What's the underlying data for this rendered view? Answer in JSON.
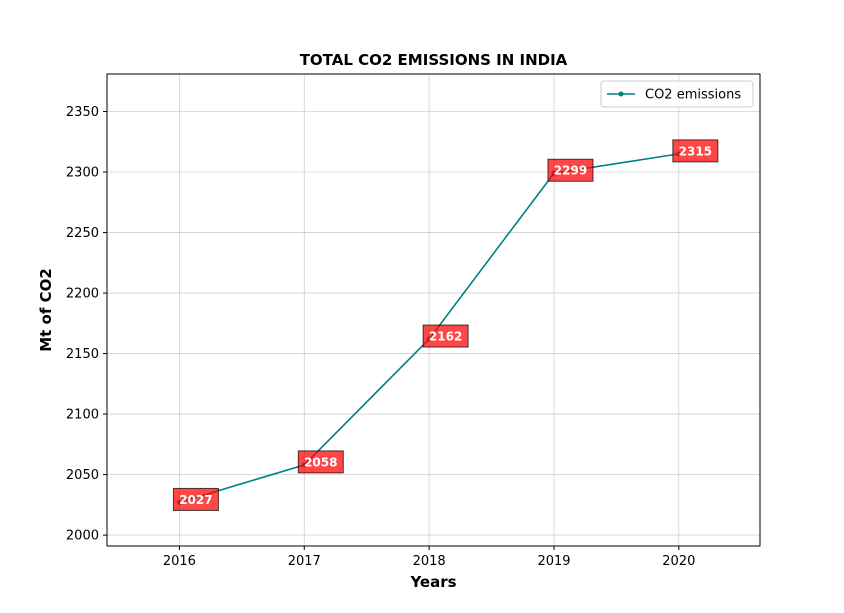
{
  "chart_data": {
    "type": "line",
    "title": "TOTAL CO2 EMISSIONS IN INDIA",
    "xlabel": "Years",
    "ylabel": "Mt of CO2",
    "x": [
      2016,
      2017,
      2018,
      2019,
      2020
    ],
    "x_tick_labels": [
      "2016",
      "2017",
      "2018",
      "2019",
      "2020"
    ],
    "xlim": [
      2015.42,
      2020.65
    ],
    "ylim": [
      1991,
      2381
    ],
    "y_ticks": [
      2000,
      2050,
      2100,
      2150,
      2200,
      2250,
      2300,
      2350
    ],
    "y_tick_labels": [
      "2000",
      "2050",
      "2100",
      "2150",
      "2200",
      "2250",
      "2300",
      "2350"
    ],
    "series": [
      {
        "name": "CO2 emissions",
        "values": [
          2027,
          2058,
          2162,
          2299,
          2315
        ],
        "data_labels": [
          "2027",
          "2058",
          "2162",
          "2299",
          "2315"
        ],
        "color": "#008080"
      }
    ],
    "data_label_box_color": "#ff0000",
    "grid": true,
    "legend_position": "top-right"
  }
}
